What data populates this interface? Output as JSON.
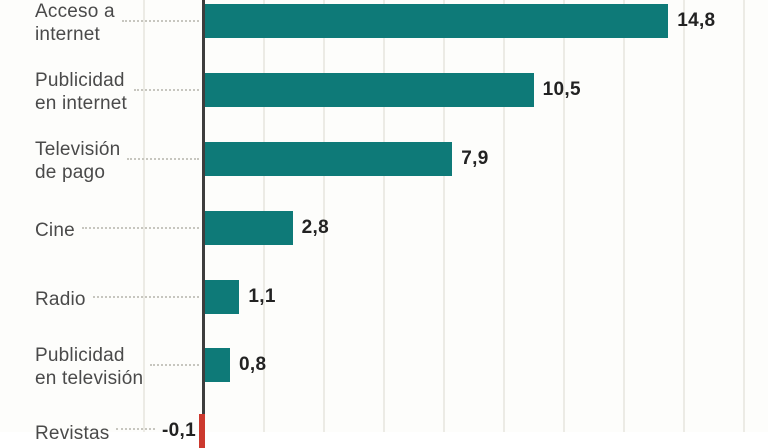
{
  "chart_data": {
    "type": "bar",
    "orientation": "horizontal",
    "title": "",
    "xlabel": "",
    "ylabel": "",
    "grid": "vertical-light-gridlines",
    "legend": "none",
    "categories": [
      "Acceso a internet",
      "Publicidad en internet",
      "Televisión de pago",
      "Cine",
      "Radio",
      "Publicidad en televisión",
      "Revistas"
    ],
    "category_lines": [
      [
        "Acceso a",
        "internet"
      ],
      [
        "Publicidad",
        "en internet"
      ],
      [
        "Televisión",
        "de pago"
      ],
      [
        "Cine"
      ],
      [
        "Radio"
      ],
      [
        "Publicidad",
        "en televisión"
      ],
      [
        "Revistas"
      ]
    ],
    "values": [
      14.8,
      10.5,
      7.9,
      2.8,
      1.1,
      0.8,
      -0.1
    ],
    "value_labels": [
      "14,8",
      "10,5",
      "7,9",
      "2,8",
      "1,1",
      "0,8",
      "-0,1"
    ],
    "colors": {
      "bar_positive": "#0e7a78",
      "bar_negative": "#cc392e",
      "axis_line": "#3d3d3d",
      "gridline": "#ecebe5",
      "leader_dots": "#c7c6bf",
      "category_text": "#4a4a4a",
      "value_text": "#222222",
      "background": "#fdfdfb"
    }
  }
}
